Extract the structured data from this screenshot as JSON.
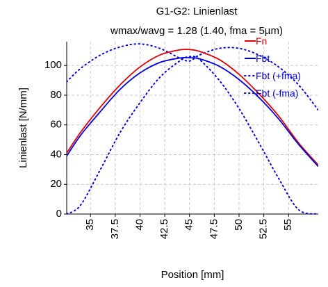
{
  "chart_data": {
    "type": "line",
    "title": "G1-G2: Linienlast",
    "subtitle": "wmax/wavg = 1.28 (1.40, fma = 5µm)",
    "xlabel": "Position [mm]",
    "ylabel": "Linienlast [N/mm]",
    "xlim": [
      32.6,
      58.0
    ],
    "ylim": [
      0,
      116
    ],
    "x_ticks": [
      35,
      37.5,
      40,
      42.5,
      45,
      47.5,
      50,
      52.5,
      55
    ],
    "x_tick_labels": [
      "35",
      "37.5",
      "40",
      "42.5",
      "45",
      "47.5",
      "50",
      "52.5",
      "55"
    ],
    "y_ticks": [
      0,
      20,
      40,
      60,
      80,
      100
    ],
    "y_tick_labels": [
      "0",
      "20",
      "40",
      "60",
      "80",
      "100"
    ],
    "grid": true,
    "legend_position": "top-right",
    "x": [
      32.6,
      34.0,
      36.0,
      38.0,
      40.0,
      42.0,
      44.0,
      45.0,
      46.0,
      48.0,
      50.0,
      52.0,
      54.0,
      56.0,
      58.0
    ],
    "series": [
      {
        "name": "Fn",
        "color": "#dd0000",
        "style": "solid",
        "values": [
          41,
          55,
          72,
          87,
          99,
          107,
          110.5,
          110.7,
          109.5,
          104,
          94,
          81,
          66,
          48,
          33
        ]
      },
      {
        "name": "Fbt",
        "color": "#0000dd",
        "style": "solid",
        "values": [
          39,
          53,
          69,
          84,
          95,
          102,
          105,
          105.2,
          104.5,
          99.5,
          90.5,
          78.5,
          64,
          47,
          32
        ]
      },
      {
        "name": "Fbt (+fma)",
        "color": "#0000dd",
        "style": "dotted",
        "values": [
          89,
          98,
          107,
          112.5,
          114.5,
          111.5,
          105,
          103,
          107,
          111.5,
          111.5,
          107,
          99,
          87,
          70
        ]
      },
      {
        "name": "Fbt (-fma)",
        "color": "#0000dd",
        "style": "dotted",
        "values": [
          0,
          6,
          30,
          55,
          75,
          92,
          103,
          106,
          104,
          90,
          71,
          48,
          24,
          3,
          0
        ]
      }
    ]
  }
}
